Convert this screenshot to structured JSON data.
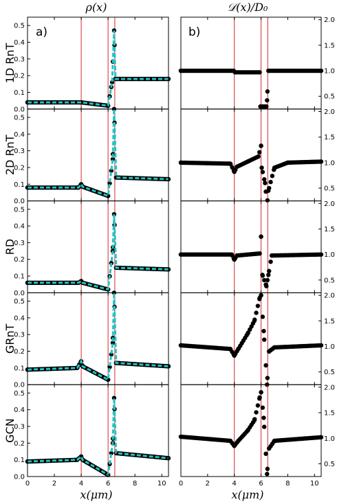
{
  "figure": {
    "left_title": "ρ(x)",
    "right_title": "𝒟(x)/D₀",
    "left_tag": "a)",
    "right_tag": "b)",
    "xlabel": "x(μm)"
  },
  "chart_data": {
    "type": "line",
    "row_labels": [
      "1D RnT",
      "2D RnT",
      "RD",
      "GRnT",
      "GCN"
    ],
    "xlim": [
      0,
      10.5
    ],
    "x_ticks": [
      0,
      2,
      4,
      6,
      8,
      10
    ],
    "left_ylim": [
      0,
      0.55
    ],
    "left_y_ticks": [
      "0.0",
      "0.1",
      "0.2",
      "0.3",
      "0.4",
      "0.5"
    ],
    "right_ylim": [
      0.25,
      2.05
    ],
    "right_y_ticks": [
      "0.5",
      "1.0",
      "1.5",
      "2.0"
    ],
    "vlines_x": [
      4.0,
      6.0,
      6.5
    ],
    "colors": {
      "data": "#000000",
      "fit": "#22c4c4",
      "vline": "#d62728"
    },
    "rho_keypoints": [
      [
        [
          0,
          0.04
        ],
        [
          3.9,
          0.04
        ],
        [
          4.0,
          0.04
        ],
        [
          6.0,
          0.02
        ],
        [
          6.3,
          0.16
        ],
        [
          6.45,
          0.47
        ],
        [
          6.55,
          0.18
        ],
        [
          10.5,
          0.18
        ]
      ],
      [
        [
          0,
          0.08
        ],
        [
          3.8,
          0.08
        ],
        [
          4.0,
          0.1
        ],
        [
          4.1,
          0.085
        ],
        [
          6.0,
          0.03
        ],
        [
          6.35,
          0.25
        ],
        [
          6.45,
          0.55
        ],
        [
          6.6,
          0.14
        ],
        [
          10.5,
          0.13
        ]
      ],
      [
        [
          0,
          0.06
        ],
        [
          3.8,
          0.06
        ],
        [
          4.0,
          0.07
        ],
        [
          4.1,
          0.06
        ],
        [
          6.0,
          0.02
        ],
        [
          6.35,
          0.25
        ],
        [
          6.45,
          0.47
        ],
        [
          6.6,
          0.15
        ],
        [
          10.5,
          0.14
        ]
      ],
      [
        [
          0,
          0.09
        ],
        [
          3.7,
          0.1
        ],
        [
          4.0,
          0.14
        ],
        [
          4.1,
          0.11
        ],
        [
          6.0,
          0.03
        ],
        [
          6.35,
          0.25
        ],
        [
          6.45,
          0.55
        ],
        [
          6.6,
          0.13
        ],
        [
          10.5,
          0.11
        ]
      ],
      [
        [
          0,
          0.09
        ],
        [
          3.7,
          0.1
        ],
        [
          4.0,
          0.12
        ],
        [
          4.1,
          0.1
        ],
        [
          6.0,
          0.01
        ],
        [
          6.35,
          0.2
        ],
        [
          6.45,
          0.47
        ],
        [
          6.6,
          0.14
        ],
        [
          10.5,
          0.11
        ]
      ]
    ],
    "diff_keypoints": [
      [
        [
          0,
          1.0
        ],
        [
          3.95,
          1.0
        ],
        [
          4.05,
          0.97
        ],
        [
          5.9,
          0.97
        ],
        [
          5.95,
          0.3
        ],
        [
          6.4,
          0.3
        ],
        [
          6.45,
          0.42
        ],
        [
          6.55,
          1.0
        ],
        [
          10.5,
          1.0
        ]
      ],
      [
        [
          0,
          1.0
        ],
        [
          3.7,
          0.98
        ],
        [
          4.0,
          0.82
        ],
        [
          4.2,
          0.92
        ],
        [
          5.0,
          1.02
        ],
        [
          5.8,
          1.12
        ],
        [
          6.0,
          1.33
        ],
        [
          6.05,
          0.9
        ],
        [
          6.3,
          0.6
        ],
        [
          6.45,
          0.18
        ],
        [
          6.55,
          0.45
        ],
        [
          7.0,
          0.9
        ],
        [
          8.0,
          1.0
        ],
        [
          10.5,
          1.02
        ]
      ],
      [
        [
          0,
          1.0
        ],
        [
          3.8,
          1.0
        ],
        [
          4.0,
          0.9
        ],
        [
          4.2,
          0.98
        ],
        [
          5.9,
          1.02
        ],
        [
          6.0,
          1.35
        ],
        [
          6.1,
          0.6
        ],
        [
          6.4,
          0.38
        ],
        [
          6.55,
          0.6
        ],
        [
          6.8,
          0.98
        ],
        [
          10.5,
          1.0
        ]
      ],
      [
        [
          0,
          1.02
        ],
        [
          3.7,
          0.95
        ],
        [
          4.0,
          0.82
        ],
        [
          4.3,
          0.95
        ],
        [
          5.0,
          1.25
        ],
        [
          5.5,
          1.5
        ],
        [
          5.9,
          1.95
        ],
        [
          6.0,
          2.0
        ],
        [
          6.2,
          1.3
        ],
        [
          6.45,
          0.25
        ],
        [
          6.6,
          0.9
        ],
        [
          7.0,
          0.98
        ],
        [
          10.5,
          1.02
        ]
      ],
      [
        [
          0,
          1.03
        ],
        [
          3.7,
          0.95
        ],
        [
          4.0,
          0.85
        ],
        [
          4.3,
          0.95
        ],
        [
          5.0,
          1.15
        ],
        [
          5.5,
          1.35
        ],
        [
          5.9,
          1.8
        ],
        [
          6.0,
          1.9
        ],
        [
          6.2,
          1.4
        ],
        [
          6.45,
          0.3
        ],
        [
          6.6,
          0.8
        ],
        [
          7.0,
          0.95
        ],
        [
          10.5,
          1.02
        ]
      ]
    ]
  }
}
